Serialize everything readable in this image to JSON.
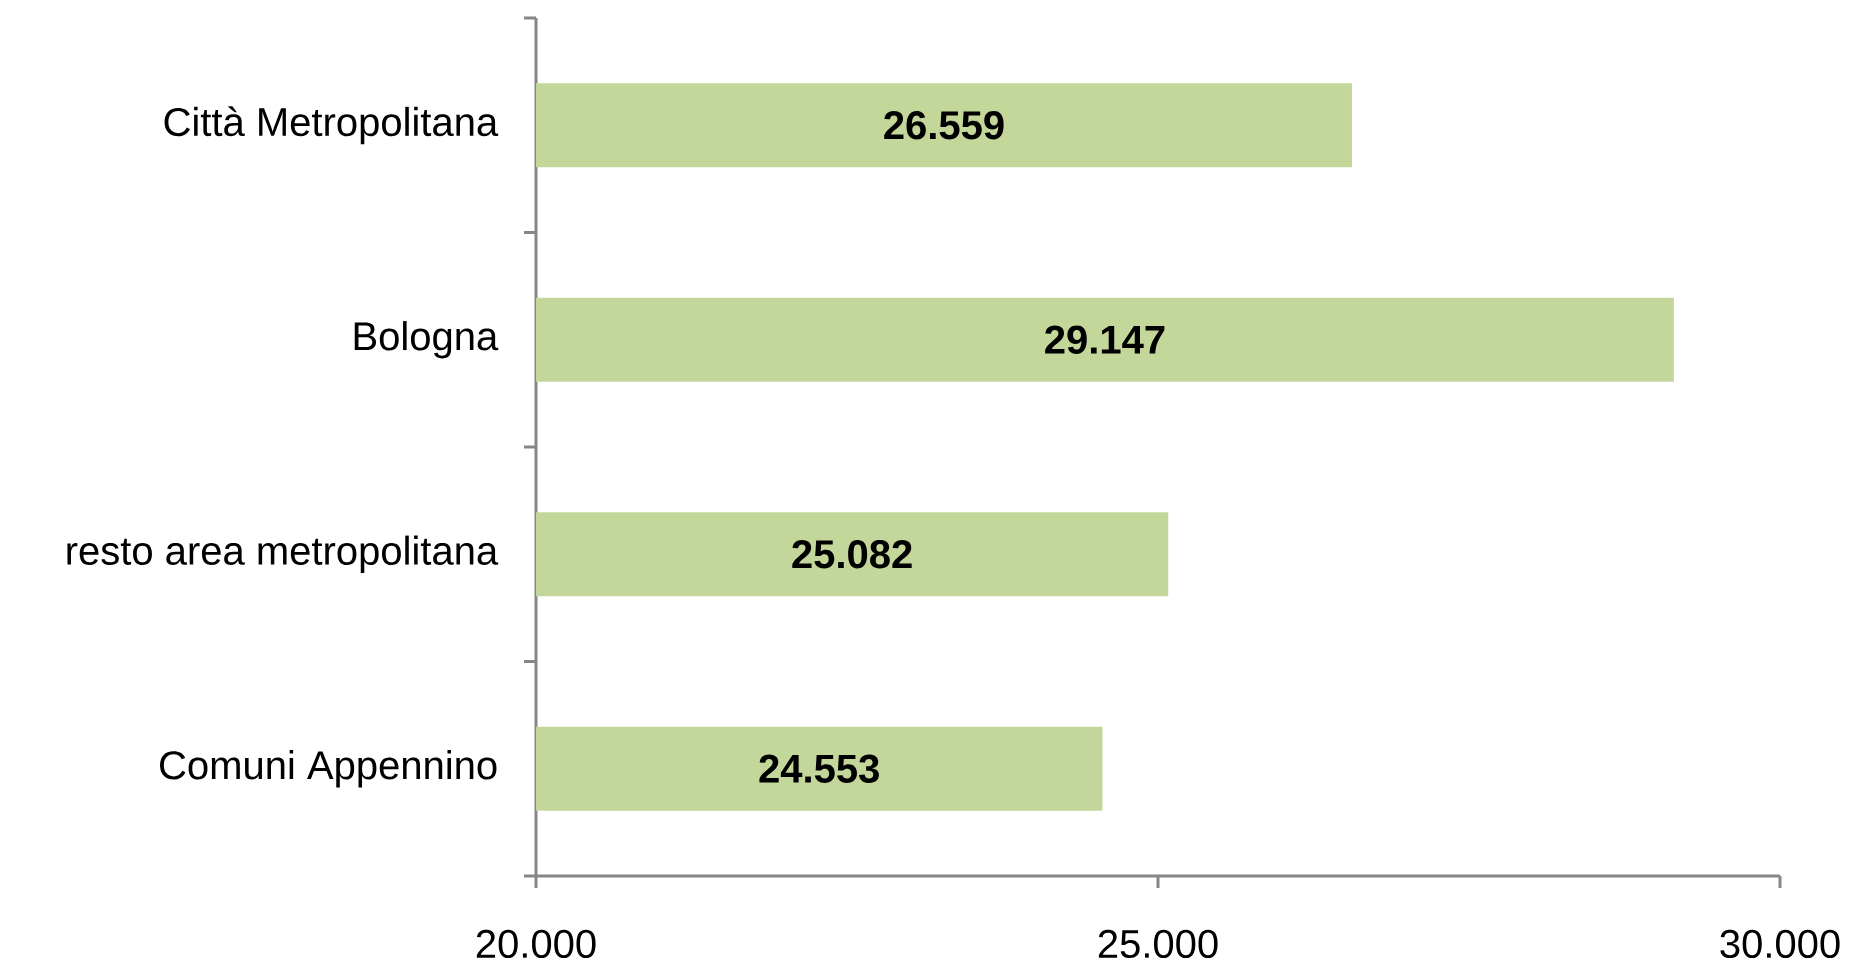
{
  "chart_data": {
    "type": "bar",
    "orientation": "horizontal",
    "categories": [
      "Città Metropolitana",
      "Bologna",
      "resto area metropolitana",
      "Comuni Appennino"
    ],
    "values": [
      26559,
      29147,
      25082,
      24553
    ],
    "value_labels": [
      "26.559",
      "29.147",
      "25.082",
      "24.553"
    ],
    "color": "#c4d79b",
    "xlim": [
      20000,
      30000
    ],
    "xticks": [
      {
        "value": 20000,
        "label": "20.000"
      },
      {
        "value": 25000,
        "label": "25.000"
      },
      {
        "value": 30000,
        "label": "30.000"
      }
    ]
  }
}
